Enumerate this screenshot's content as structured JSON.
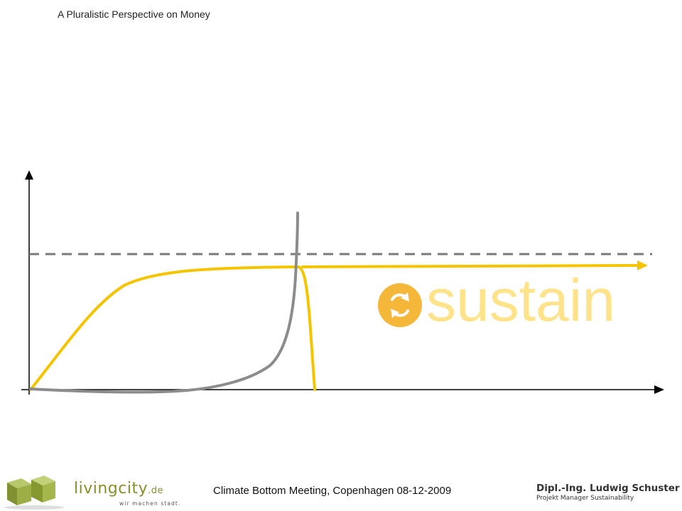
{
  "header": {
    "title": "A Pluralistic Perspective on Money"
  },
  "diagram": {
    "brand_word": "sustain",
    "colors": {
      "axis": "#000000",
      "yellow_curve": "#f5c400",
      "gray_curve": "#8c8c8c",
      "dashed_line": "#7a7a7a",
      "brand_circle": "#f5b73a",
      "brand_text": "#ffe38a"
    },
    "icons": [
      "exchange-arrows-icon"
    ]
  },
  "footer": {
    "event": "Climate Bottom Meeting, Copenhagen 08-12-2009",
    "left_logo": {
      "word_main": "livingcity",
      "word_tld": ".de",
      "tagline": "wir machen stadt."
    },
    "author": {
      "name": "Dipl.-Ing. Ludwig Schuster",
      "role": "Projekt Manager Sustainability"
    }
  }
}
